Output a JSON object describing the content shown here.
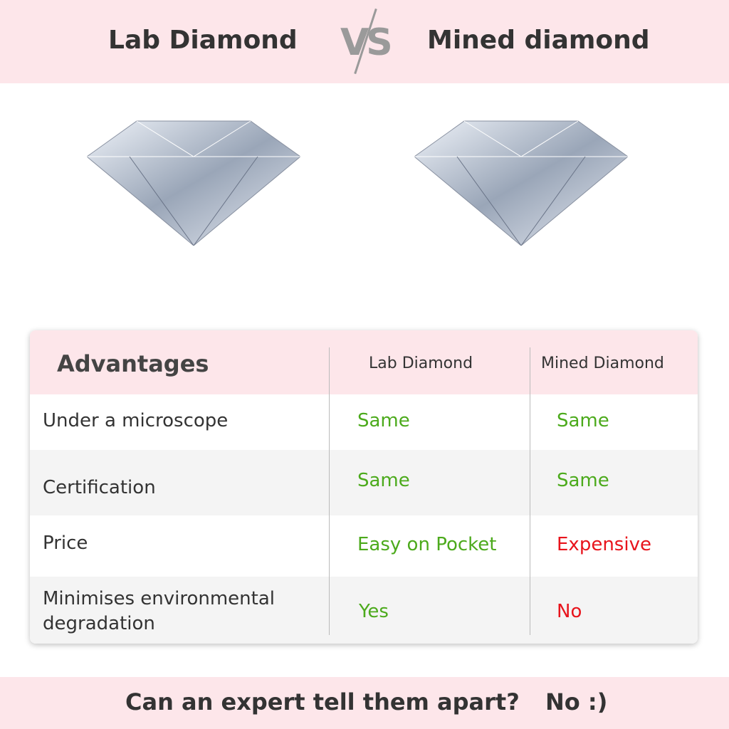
{
  "header": {
    "left": "Lab Diamond",
    "vs": "VS",
    "right": "Mined diamond"
  },
  "table": {
    "headers": [
      "Advantages",
      "Lab Diamond",
      "Mined Diamond"
    ],
    "rows": [
      {
        "label": "Under a microscope",
        "lab": "Same",
        "mined": "Same",
        "lab_color": "#4caa1c",
        "mined_color": "#4caa1c"
      },
      {
        "label": "Certification",
        "lab": "Same",
        "mined": "Same",
        "lab_color": "#4caa1c",
        "mined_color": "#4caa1c"
      },
      {
        "label": "Price",
        "lab": "Easy on Pocket",
        "mined": "Expensive",
        "lab_color": "#4caa1c",
        "mined_color": "#e8141c"
      },
      {
        "label": "Minimises environmental degradation",
        "lab": "Yes",
        "mined": "No",
        "lab_color": "#4caa1c",
        "mined_color": "#e8141c"
      }
    ]
  },
  "footer": {
    "question": "Can an expert tell them apart?",
    "answer": "No :)"
  }
}
